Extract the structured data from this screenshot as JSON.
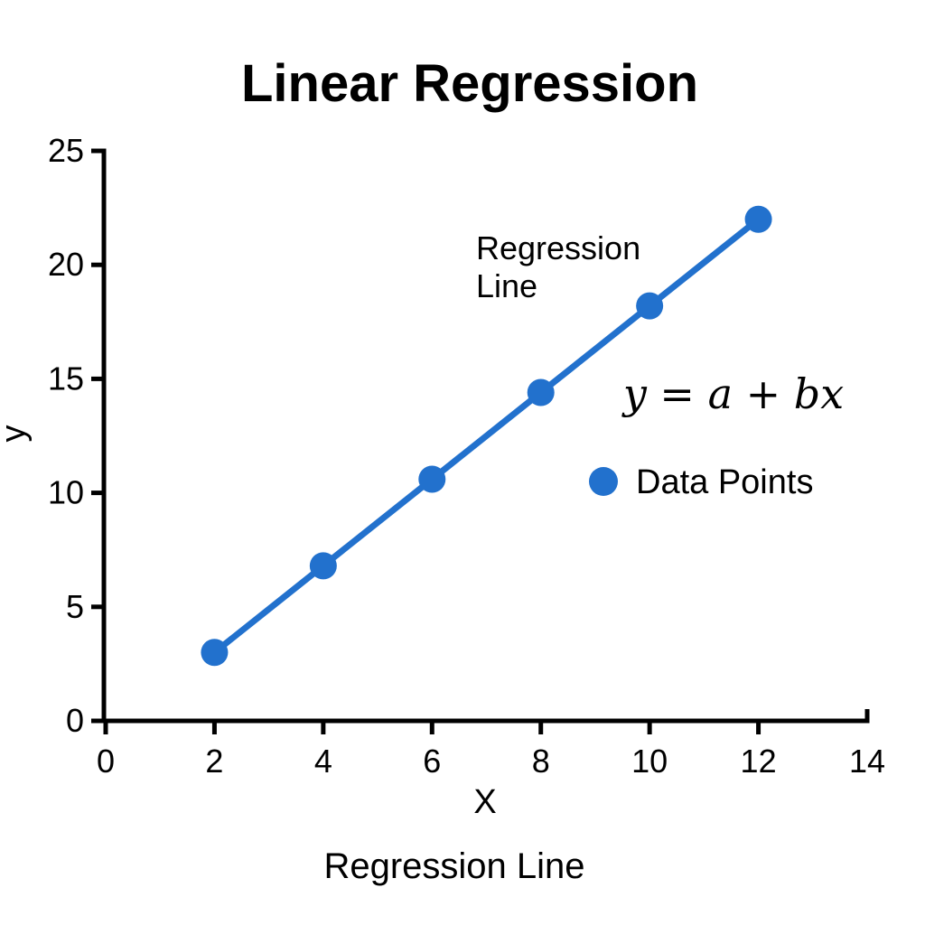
{
  "colors": {
    "accent_blue": "#2271CD",
    "axis": "#000000",
    "text": "#000000",
    "background": "#ffffff"
  },
  "chart_data": {
    "type": "line",
    "title": "Linear Regression",
    "xlabel": "X",
    "ylabel": "y",
    "caption": "Regression Line",
    "x": [
      2,
      4,
      6,
      8,
      10,
      12
    ],
    "y": [
      3.0,
      6.8,
      10.6,
      14.4,
      18.2,
      22.0
    ],
    "xlim": [
      0,
      14
    ],
    "ylim": [
      0,
      25
    ],
    "xticks": [
      "0",
      "2",
      "4",
      "6",
      "8",
      "10",
      "12",
      "14"
    ],
    "xtick_values": [
      0,
      2,
      4,
      6,
      8,
      10,
      12,
      14
    ],
    "yticks": [
      "0",
      "5",
      "10",
      "15",
      "20",
      "25"
    ],
    "ytick_values": [
      0,
      5,
      10,
      15,
      20,
      25
    ],
    "grid": false,
    "marker": "circle",
    "annotation": {
      "lines": [
        "Regression",
        "Line"
      ]
    },
    "equation": "y = a + bx",
    "legend": {
      "position": "right-middle",
      "entries": [
        {
          "label": "Data Points",
          "marker": "circle"
        }
      ]
    }
  }
}
